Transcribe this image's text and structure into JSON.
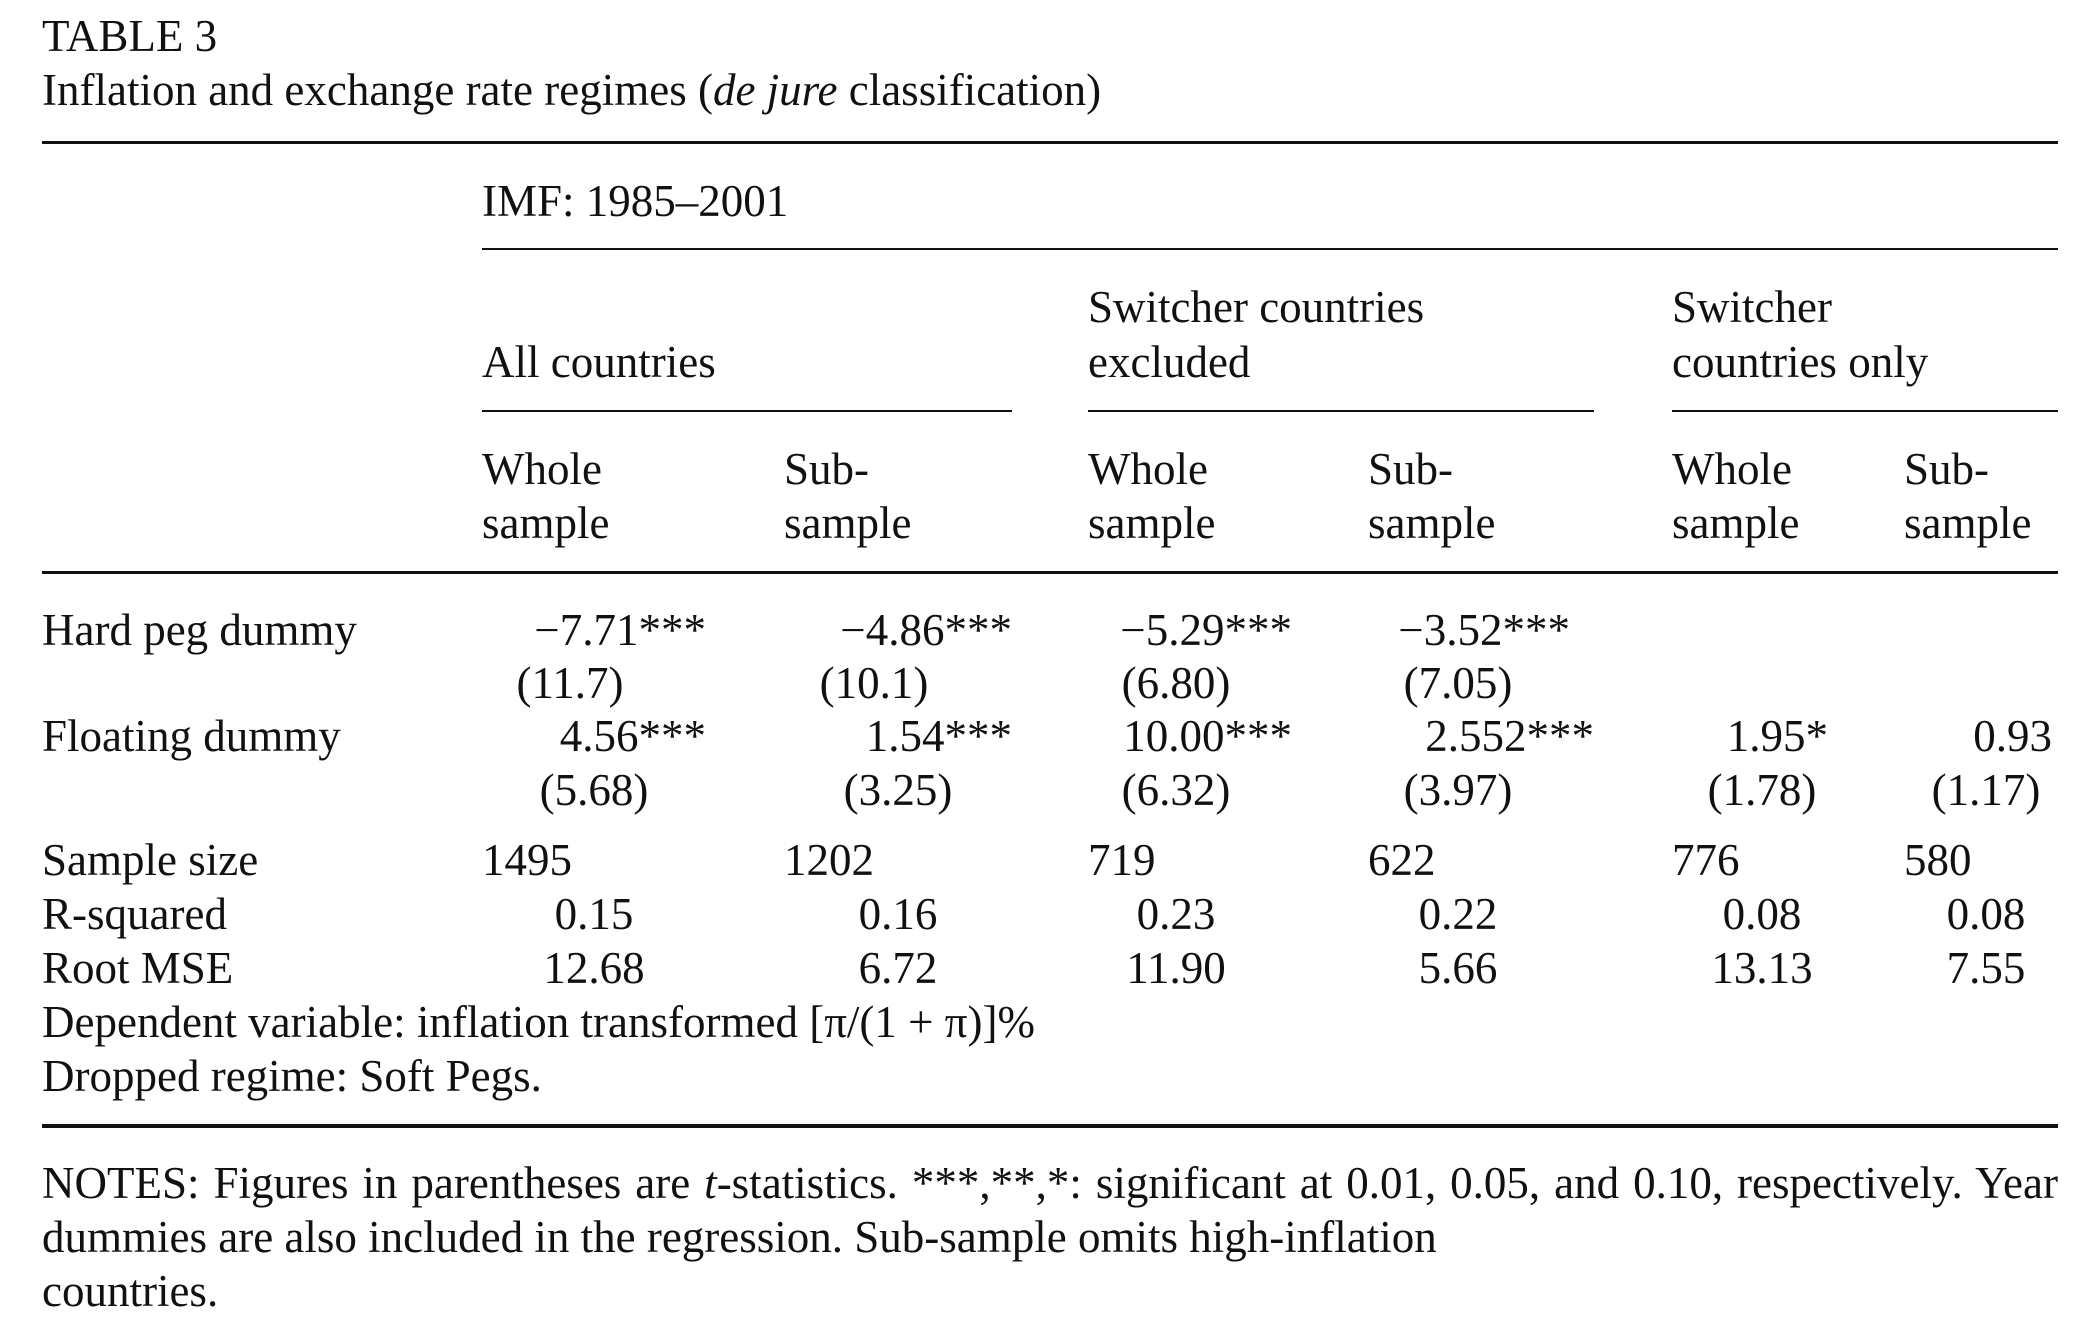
{
  "table": {
    "label": "TABLE 3",
    "title_pre": "Inflation and exchange rate regimes (",
    "title_italic": "de jure",
    "title_post": " classification)",
    "spanner": "IMF: 1985–2001",
    "groups": [
      {
        "line1": "",
        "line2": "All countries"
      },
      {
        "line1": "Switcher countries",
        "line2": "excluded"
      },
      {
        "line1": "Switcher",
        "line2": "countries only"
      }
    ],
    "subheaders": [
      {
        "line1": "Whole",
        "line2": "sample"
      },
      {
        "line1": "Sub-",
        "line2": "sample"
      },
      {
        "line1": "Whole",
        "line2": "sample"
      },
      {
        "line1": "Sub-",
        "line2": "sample"
      },
      {
        "line1": "Whole",
        "line2": "sample"
      },
      {
        "line1": "Sub-",
        "line2": "sample"
      }
    ],
    "rows": [
      {
        "label": "Hard peg dummy",
        "coef": [
          "−7.71***",
          "−4.86***",
          "−5.29***",
          "−3.52***",
          "",
          ""
        ],
        "tstat": [
          "(11.7)",
          "(10.1)",
          "(6.80)",
          "(7.05)",
          "",
          ""
        ]
      },
      {
        "label": "Floating dummy",
        "coef": [
          "4.56***",
          "1.54***",
          "10.00***",
          "2.552***",
          "1.95*",
          "0.93"
        ],
        "tstat": [
          "(5.68)",
          "(3.25)",
          "(6.32)",
          "(3.97)",
          "(1.78)",
          "(1.17)"
        ]
      }
    ],
    "stats": [
      {
        "label": "Sample size",
        "values": [
          "1495",
          "1202",
          "719",
          "622",
          "776",
          "580"
        ]
      },
      {
        "label": "R-squared",
        "values": [
          "0.15",
          "0.16",
          "0.23",
          "0.22",
          "0.08",
          "0.08"
        ]
      },
      {
        "label": "Root MSE",
        "values": [
          "12.68",
          "6.72",
          "11.90",
          "5.66",
          "13.13",
          "7.55"
        ]
      }
    ],
    "dependent_variable": "Dependent variable: inflation transformed [π/(1 + π)]%",
    "dropped_regime": "Dropped regime: Soft Pegs.",
    "notes_pre": "NOTES: Figures in parentheses are ",
    "notes_italic": "t",
    "notes_post": "-statistics. ***,**,*: significant at 0.01, 0.05, and 0.10, respectively. Year dummies are also included in the regression. Sub-sample omits high-inflation",
    "notes_last": "countries."
  }
}
